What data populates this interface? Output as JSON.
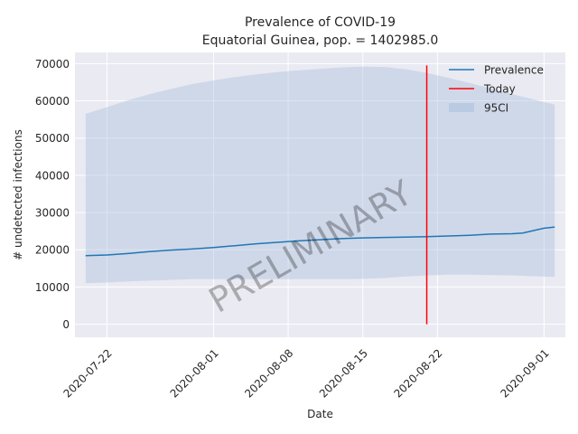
{
  "chart_data": {
    "type": "line",
    "title": "Prevalence of COVID-19",
    "subtitle": "Equatorial Guinea, pop. = 1402985.0",
    "xlabel": "Date",
    "ylabel": "# undetected infections",
    "xlim": [
      "2020-07-19",
      "2020-09-03"
    ],
    "ylim": [
      -3500,
      73000
    ],
    "grid": true,
    "legend_position": "top-right",
    "xticks": [
      "2020-07-22",
      "2020-08-01",
      "2020-08-08",
      "2020-08-15",
      "2020-08-22",
      "2020-09-01"
    ],
    "yticks": [
      0,
      10000,
      20000,
      30000,
      40000,
      50000,
      60000,
      70000
    ],
    "watermark": "PRELIMINARY",
    "colors": {
      "prevalence": "#1f77b4",
      "today": "#ff0000",
      "ci": "#b0c4de",
      "background": "#eaeaf2",
      "grid": "#ffffff"
    },
    "series": [
      {
        "name": "Prevalence",
        "x": [
          "2020-07-20",
          "2020-07-22",
          "2020-07-24",
          "2020-07-26",
          "2020-07-28",
          "2020-07-30",
          "2020-08-01",
          "2020-08-03",
          "2020-08-05",
          "2020-08-07",
          "2020-08-09",
          "2020-08-11",
          "2020-08-13",
          "2020-08-15",
          "2020-08-17",
          "2020-08-19",
          "2020-08-21",
          "2020-08-23",
          "2020-08-25",
          "2020-08-27",
          "2020-08-29",
          "2020-08-30",
          "2020-09-01",
          "2020-09-02"
        ],
        "values": [
          18400,
          18600,
          19000,
          19500,
          19900,
          20200,
          20600,
          21100,
          21600,
          22000,
          22400,
          22700,
          23000,
          23200,
          23300,
          23400,
          23500,
          23700,
          23900,
          24200,
          24300,
          24500,
          25800,
          26100
        ]
      }
    ],
    "ci": {
      "name": "95CI",
      "x": [
        "2020-07-20",
        "2020-07-22",
        "2020-07-24",
        "2020-07-26",
        "2020-07-28",
        "2020-07-30",
        "2020-08-01",
        "2020-08-03",
        "2020-08-05",
        "2020-08-07",
        "2020-08-09",
        "2020-08-11",
        "2020-08-13",
        "2020-08-15",
        "2020-08-17",
        "2020-08-19",
        "2020-08-21",
        "2020-08-23",
        "2020-08-25",
        "2020-08-27",
        "2020-08-29",
        "2020-08-31",
        "2020-09-02"
      ],
      "upper": [
        56500,
        58300,
        60200,
        61800,
        63200,
        64500,
        65500,
        66400,
        67100,
        67700,
        68200,
        68600,
        69000,
        69200,
        69100,
        68500,
        67500,
        66200,
        64800,
        63300,
        61800,
        60400,
        59000
      ],
      "lower": [
        11000,
        11200,
        11500,
        11700,
        11900,
        12100,
        12100,
        12100,
        12100,
        12100,
        12100,
        12100,
        12100,
        12200,
        12400,
        12800,
        13100,
        13300,
        13300,
        13200,
        13100,
        12900,
        12700
      ]
    },
    "today": {
      "name": "Today",
      "x": "2020-08-21",
      "ymin": 0,
      "ymax": 69500
    }
  }
}
